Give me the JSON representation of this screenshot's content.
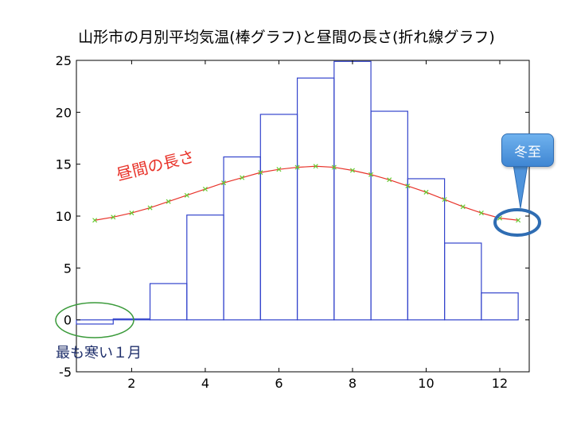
{
  "chart_data": {
    "type": "bar",
    "title": "山形市の月別平均気温(棒グラフ)と昼間の長さ(折れ線グラフ)",
    "xlabel": "",
    "ylabel": "",
    "xlim": [
      0.5,
      12.8
    ],
    "ylim": [
      -5,
      25
    ],
    "xticks": [
      2,
      4,
      6,
      8,
      10,
      12
    ],
    "yticks": [
      -5,
      0,
      5,
      10,
      15,
      20,
      25
    ],
    "grid": false,
    "months": [
      1,
      2,
      3,
      4,
      5,
      6,
      7,
      8,
      9,
      10,
      11,
      12
    ],
    "series": [
      {
        "type": "bar",
        "color": "#3344cc",
        "values": [
          -0.4,
          0.1,
          3.5,
          10.1,
          15.7,
          19.8,
          23.3,
          24.9,
          20.1,
          13.6,
          7.4,
          2.6
        ]
      },
      {
        "type": "line",
        "color": "#e8332a",
        "marker_color": "#66cc33",
        "x": [
          1,
          1.5,
          2,
          2.5,
          3,
          3.5,
          4,
          4.5,
          5,
          5.5,
          6,
          6.5,
          7,
          7.5,
          8,
          8.5,
          9,
          9.5,
          10,
          10.5,
          11,
          11.5,
          12,
          12.5
        ],
        "values": [
          9.6,
          9.9,
          10.3,
          10.8,
          11.4,
          12.0,
          12.6,
          13.2,
          13.7,
          14.2,
          14.5,
          14.7,
          14.8,
          14.7,
          14.4,
          14.0,
          13.5,
          12.9,
          12.3,
          11.6,
          10.9,
          10.3,
          9.8,
          9.6
        ]
      }
    ],
    "annotations": {
      "daylight_label": "昼間の長さ",
      "coldest_label": "最も寒い１月",
      "solstice_label": "冬至"
    }
  }
}
